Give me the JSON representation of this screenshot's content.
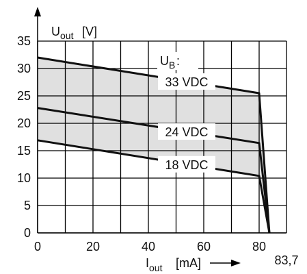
{
  "chart_data": {
    "type": "line",
    "title": "",
    "ylabel_main": "U",
    "ylabel_sub": "out",
    "ylabel_unit": "[V]",
    "xlabel_main": "I",
    "xlabel_sub": "out",
    "xlabel_unit": "[mA]",
    "legend_title_main": "U",
    "legend_title_sub": "B",
    "legend_title_suffix": ":",
    "x_ticks": [
      "0",
      "20",
      "40",
      "60",
      "80"
    ],
    "y_ticks": [
      "0",
      "5",
      "10",
      "15",
      "20",
      "25",
      "30",
      "35"
    ],
    "x_end_label": "83,7",
    "xlim": [
      0,
      83.7
    ],
    "ylim": [
      0,
      35
    ],
    "grid": true,
    "shaded_band": true,
    "series": [
      {
        "name": "33 VDC",
        "x": [
          0,
          80,
          83.7
        ],
        "y": [
          32,
          25.5,
          0
        ]
      },
      {
        "name": "24 VDC",
        "x": [
          0,
          80,
          83.7
        ],
        "y": [
          22.8,
          16.4,
          0
        ]
      },
      {
        "name": "18 VDC",
        "x": [
          0,
          80,
          83.7
        ],
        "y": [
          16.9,
          10.4,
          0
        ]
      }
    ]
  }
}
